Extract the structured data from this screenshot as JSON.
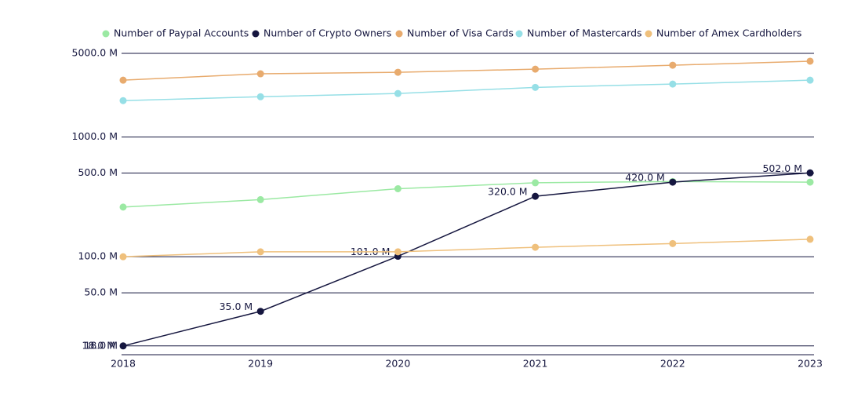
{
  "chart_data": {
    "type": "line",
    "x": [
      "2018",
      "2019",
      "2020",
      "2021",
      "2022",
      "2023"
    ],
    "series": [
      {
        "name": "Number of Paypal Accounts",
        "color": "#9be9a3",
        "values": [
          260,
          300,
          370,
          415,
          425,
          420
        ]
      },
      {
        "name": "Number of Crypto Owners",
        "color": "#15163f",
        "values": [
          18,
          35,
          101,
          320,
          420,
          502
        ],
        "value_labels": [
          "18.0 M",
          "35.0 M",
          "101.0 M",
          "320.0 M",
          "420.0 M",
          "502.0 M"
        ]
      },
      {
        "name": "Number of Visa Cards",
        "color": "#e8ab6e",
        "values": [
          2985,
          3375,
          3475,
          3690,
          3980,
          4300
        ]
      },
      {
        "name": "Number of Mastercards",
        "color": "#96dfe6",
        "values": [
          2015,
          2170,
          2310,
          2600,
          2770,
          2985
        ]
      },
      {
        "name": "Number of Amex Cardholders",
        "color": "#efc07c",
        "values": [
          100,
          110,
          110,
          120,
          129,
          140
        ]
      }
    ],
    "log_scale": true,
    "ylim": [
      15.2,
      5000
    ],
    "yticks": [
      {
        "value": 18,
        "label": "18.0 M"
      },
      {
        "value": 50,
        "label": "50.0 M"
      },
      {
        "value": 100,
        "label": "100.0 M"
      },
      {
        "value": 500,
        "label": "500.0 M"
      },
      {
        "value": 1000,
        "label": "1000.0 M"
      },
      {
        "value": 5000,
        "label": "5000.0 M"
      }
    ],
    "grid": true,
    "legend": "top"
  }
}
